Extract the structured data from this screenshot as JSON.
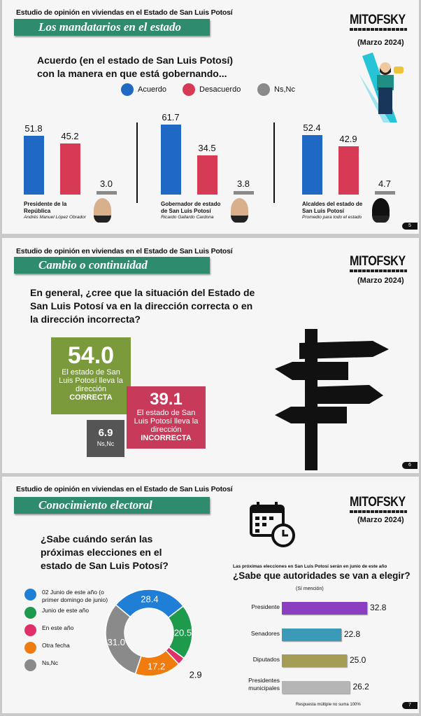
{
  "slides": [
    {
      "header": "Estudio de opinión en viviendas en el Estado de San Luis Potosí",
      "title": "Los mandatarios en el estado",
      "logo": "MITOFSKY",
      "date": "(Marzo 2024)",
      "page": "5",
      "question": "Acuerdo (en el estado de San Luis Potosí) con la manera en que está gobernando..."
    },
    {
      "header": "Estudio de opinión en viviendas en el Estado de San Luis Potosí",
      "title": "Cambio o continuidad",
      "logo": "MITOFSKY",
      "date": "(Marzo 2024)",
      "page": "6",
      "question": "En general, ¿cree que la situación del Estado de San Luis Potosí va en la dirección correcta o en la dirección incorrecta?"
    },
    {
      "header": "Estudio de opinión en viviendas en el Estado de San Luis Potosí",
      "title": "Conocimiento electoral",
      "logo": "MITOFSKY",
      "date": "(Marzo 2024)",
      "page": "7",
      "question": "¿Sabe cuándo serán las próximas elecciones en el estado de San Luis Potosí?"
    }
  ],
  "chart_data": [
    {
      "type": "bar",
      "title": "Acuerdo (en el estado de San Luis Potosí) con la manera en que está gobernando...",
      "legend": [
        "Acuerdo",
        "Desacuerdo",
        "Ns,Nc"
      ],
      "colors": [
        "#1f68c4",
        "#d63a55",
        "#8a8a8a"
      ],
      "groups": [
        {
          "label": "Presidente de la República",
          "sublabel": "Andrés Manuel López Obrador",
          "values": [
            51.8,
            45.2,
            3.0
          ]
        },
        {
          "label": "Gobernador de estado de San Luis Potosí",
          "sublabel": "Ricardo Gallardo Cardona",
          "values": [
            61.7,
            34.5,
            3.8
          ]
        },
        {
          "label": "Alcaldes del estado de San Luis Potosí",
          "sublabel": "Promedio para todo el estado",
          "values": [
            52.4,
            42.9,
            4.7
          ]
        }
      ]
    },
    {
      "type": "table",
      "items": [
        {
          "value": "54.0",
          "text": "El estado de San Luis Potosí lleva la dirección",
          "emph": "CORRECTA",
          "color": "#7b9a3b"
        },
        {
          "value": "39.1",
          "text": "El estado de San Luis Potosí lleva la dirección",
          "emph": "INCORRECTA",
          "color": "#c83a5a"
        },
        {
          "value": "6.9",
          "text": "Ns,Nc",
          "emph": "",
          "color": "#555555"
        }
      ]
    },
    {
      "type": "pie",
      "title": "¿Sabe cuándo serán las próximas elecciones en el estado de San Luis Potosí?",
      "labels": [
        "02 Junio de este año (o primer domingo de junio)",
        "Junio de este año",
        "En este año",
        "Otra fecha",
        "Ns,Nc"
      ],
      "values": [
        28.4,
        20.5,
        2.9,
        17.2,
        31.0
      ],
      "colors": [
        "#1f7fd6",
        "#1d9a4c",
        "#e0306a",
        "#f07c10",
        "#8a8a8a"
      ]
    },
    {
      "type": "bar",
      "orientation": "horizontal",
      "subtitle": "Las próximas elecciones en San Luis Potosí serán en junio de este año",
      "title": "¿Sabe que autoridades se van a elegir?",
      "note": "(Sí mención)",
      "footnote": "Respuesta múltiple no suma 100%",
      "categories": [
        "Presidente",
        "Senadores",
        "Diputados",
        "Presidentes municipales"
      ],
      "values": [
        32.8,
        22.8,
        25.0,
        26.2
      ],
      "colors": [
        "#8a3ec0",
        "#3a9ab8",
        "#a39c55",
        "#b5b5b5"
      ]
    }
  ]
}
